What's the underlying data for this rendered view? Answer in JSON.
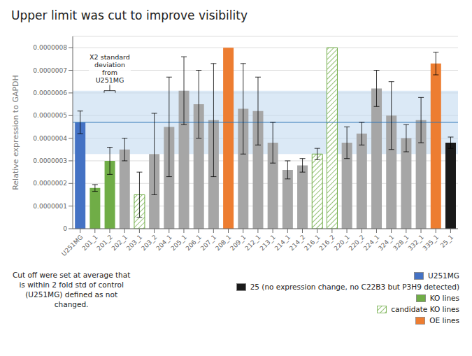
{
  "chart_data": {
    "type": "bar",
    "title": "Upper limit was cut to improve visibility",
    "ylabel": "Relative expression to GAPDH",
    "categories": [
      "U251MG",
      "201_1",
      "201_2",
      "202_1",
      "203_1",
      "203_2",
      "204_1",
      "205_1",
      "206_1",
      "207_1",
      "208_1",
      "209_1",
      "212_1",
      "213_1",
      "214_1",
      "214_2",
      "216_1",
      "216_2",
      "220_1",
      "220_2",
      "224_1",
      "324_1",
      "328_1",
      "332_1",
      "335_1",
      "25_1"
    ],
    "values": [
      4.7e-07,
      1.8e-07,
      3e-07,
      3.5e-07,
      1.5e-07,
      3.3e-07,
      4.5e-07,
      6.1e-07,
      5.5e-07,
      4.8e-07,
      8e-07,
      5.3e-07,
      5.2e-07,
      3.8e-07,
      2.6e-07,
      2.8e-07,
      3.3e-07,
      8e-07,
      3.8e-07,
      4.2e-07,
      6.2e-07,
      5e-07,
      4e-07,
      4.8e-07,
      7.3e-07,
      3.8e-07
    ],
    "errors": [
      5e-08,
      1.5e-08,
      6e-08,
      5e-08,
      1e-07,
      1.8e-07,
      2.2e-07,
      1.5e-07,
      1.5e-07,
      2.5e-07,
      0.0,
      2e-07,
      1.5e-07,
      9e-08,
      4e-08,
      3e-08,
      2.5e-08,
      0.0,
      7e-08,
      5e-08,
      8e-08,
      1.5e-07,
      6e-08,
      1e-07,
      5e-08,
      2.5e-08
    ],
    "colors": [
      "#4472C4",
      "#70AD47",
      "#70AD47",
      "#A6A6A6",
      "#70AD47",
      "#A6A6A6",
      "#A6A6A6",
      "#A6A6A6",
      "#A6A6A6",
      "#A6A6A6",
      "#ED7D31",
      "#A6A6A6",
      "#A6A6A6",
      "#A6A6A6",
      "#A6A6A6",
      "#A6A6A6",
      "#70AD47",
      "#70AD47",
      "#A6A6A6",
      "#A6A6A6",
      "#A6A6A6",
      "#A6A6A6",
      "#A6A6A6",
      "#A6A6A6",
      "#ED7D31",
      "#1A1A1A"
    ],
    "hatched": [
      false,
      false,
      false,
      false,
      true,
      false,
      false,
      false,
      false,
      false,
      false,
      false,
      false,
      false,
      false,
      false,
      true,
      true,
      false,
      false,
      false,
      false,
      false,
      false,
      false,
      false
    ],
    "ylim": [
      0,
      8.5e-07
    ],
    "yticks": [
      0,
      {
        "value": 1e-07,
        "label": "0.0000001"
      },
      {
        "value": 2e-07,
        "label": "0.0000002"
      },
      {
        "value": 3e-07,
        "label": "0.0000003"
      },
      {
        "value": 4e-07,
        "label": "0.0000004"
      },
      {
        "value": 5e-07,
        "label": "0.0000005"
      },
      {
        "value": 6e-07,
        "label": "0.0000006"
      },
      {
        "value": 7e-07,
        "label": "0.0000007"
      },
      {
        "value": 8e-07,
        "label": "0.0000008"
      }
    ],
    "grid": true,
    "band": {
      "low": 3.3e-07,
      "high": 6.1e-07,
      "color": "#BDD7EE"
    },
    "mean_line": {
      "value": 4.7e-07,
      "color": "#2E75B6"
    },
    "annotation": "X2 standard\ndeviation\nfrom\nU251MG",
    "cutoff_text": "Cut off were set at average that\nis within 2 fold std of control\n(U251MG) defined as not\nchanged.",
    "legend": "lower right",
    "legend_entries": [
      {
        "name": "U251MG",
        "color": "#4472C4",
        "hatched": false
      },
      {
        "name": "25 (no expression change, no C22B3 but P3H9 detected)",
        "color": "#1A1A1A",
        "hatched": false
      },
      {
        "name": "KO lines",
        "color": "#70AD47",
        "hatched": false
      },
      {
        "name": "candidate KO lines",
        "color": "#70AD47",
        "hatched": true
      },
      {
        "name": "OE lines",
        "color": "#ED7D31",
        "hatched": false
      }
    ]
  }
}
